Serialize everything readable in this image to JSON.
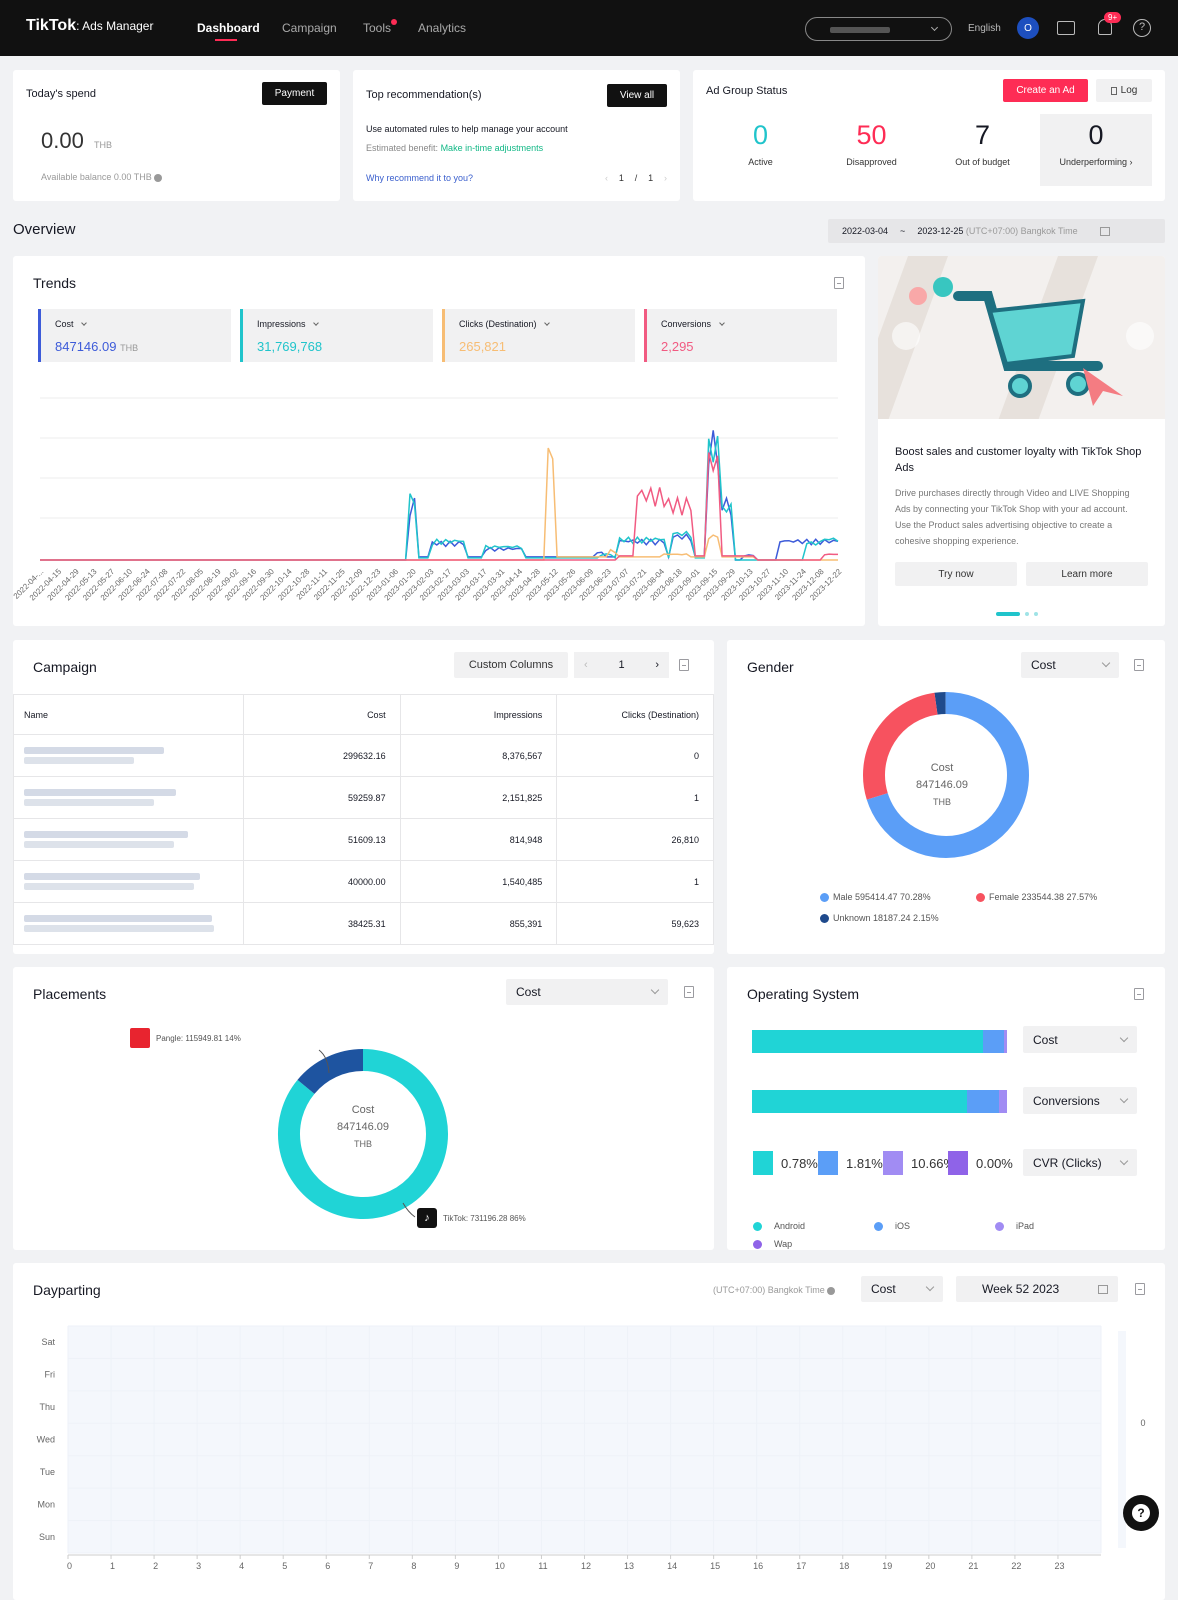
{
  "header": {
    "logo": "TikTok",
    "logo_suffix": ": Ads Manager",
    "nav": [
      "Dashboard",
      "Campaign",
      "Tools",
      "Analytics"
    ],
    "language": "English",
    "avatar": "O",
    "notif_badge": "9+"
  },
  "spend": {
    "title": "Today's spend",
    "payment_label": "Payment",
    "amount": "0.00",
    "currency": "THB",
    "balance": "Available balance 0.00 THB"
  },
  "reco": {
    "title": "Top recommendation(s)",
    "view_all": "View all",
    "text": "Use automated rules to help manage your account",
    "benefit_label": "Estimated benefit:",
    "benefit_link": "Make in-time adjustments",
    "why": "Why recommend it to you?",
    "page": "1",
    "sep": "/",
    "total": "1"
  },
  "adgroup": {
    "title": "Ad Group Status",
    "create": "Create an Ad",
    "log": "Log",
    "stats": [
      {
        "value": "0",
        "label": "Active",
        "color": "#20c4cb"
      },
      {
        "value": "50",
        "label": "Disapproved",
        "color": "#fe2c55"
      },
      {
        "value": "7",
        "label": "Out of budget",
        "color": "#161823"
      },
      {
        "value": "0",
        "label": "Underperforming ›",
        "color": "#161823"
      }
    ]
  },
  "overview": {
    "title": "Overview",
    "date_start": "2022-03-04",
    "date_sep": "~",
    "date_end": "2023-12-25",
    "tz": "(UTC+07:00) Bangkok Time"
  },
  "trends": {
    "title": "Trends",
    "metrics": [
      {
        "label": "Cost",
        "value": "847146.09",
        "unit": "THB",
        "color": "#3d5bd9"
      },
      {
        "label": "Impressions",
        "value": "31,769,768",
        "unit": "",
        "color": "#20c4cb"
      },
      {
        "label": "Clicks (Destination)",
        "value": "265,821",
        "unit": "",
        "color": "#f7bd74"
      },
      {
        "label": "Conversions",
        "value": "2,295",
        "unit": "",
        "color": "#f15b82"
      }
    ],
    "dates": [
      "2022-04-...",
      "2022-04-15",
      "2022-04-29",
      "2022-05-13",
      "2022-05-27",
      "2022-06-10",
      "2022-06-24",
      "2022-07-08",
      "2022-07-22",
      "2022-08-05",
      "2022-08-19",
      "2022-09-02",
      "2022-09-16",
      "2022-09-30",
      "2022-10-14",
      "2022-10-28",
      "2022-11-11",
      "2022-11-25",
      "2022-12-09",
      "2022-12-23",
      "2023-01-06",
      "2023-01-20",
      "2023-02-03",
      "2023-02-17",
      "2023-03-03",
      "2023-03-17",
      "2023-03-31",
      "2023-04-14",
      "2023-04-28",
      "2023-05-12",
      "2023-05-26",
      "2023-06-09",
      "2023-06-23",
      "2023-07-07",
      "2023-07-21",
      "2023-08-04",
      "2023-08-18",
      "2023-09-01",
      "2023-09-15",
      "2023-09-29",
      "2023-10-13",
      "2023-10-27",
      "2023-11-10",
      "2023-11-24",
      "2023-12-08",
      "2023-12-22"
    ]
  },
  "promo": {
    "title": "Boost sales and customer loyalty with TikTok Shop Ads",
    "body": "Drive purchases directly through Video and LIVE Shopping Ads by connecting your TikTok Shop with your ad account. Use the Product sales advertising objective to create a cohesive shopping experience.",
    "try": "Try now",
    "learn": "Learn more"
  },
  "campaign": {
    "title": "Campaign",
    "custom_columns": "Custom Columns",
    "page": "1",
    "columns": [
      "Name",
      "Cost",
      "Impressions",
      "Clicks (Destination)"
    ],
    "rows": [
      {
        "cost": "299632.16",
        "impressions": "8,376,567",
        "clicks": "0"
      },
      {
        "cost": "59259.87",
        "impressions": "2,151,825",
        "clicks": "1"
      },
      {
        "cost": "51609.13",
        "impressions": "814,948",
        "clicks": "26,810"
      },
      {
        "cost": "40000.00",
        "impressions": "1,540,485",
        "clicks": "1"
      },
      {
        "cost": "38425.31",
        "impressions": "855,391",
        "clicks": "59,623"
      }
    ]
  },
  "gender": {
    "title": "Gender",
    "select": "Cost",
    "center_label": "Cost",
    "center_value": "847146.09",
    "center_unit": "THB",
    "legend": [
      {
        "label": "Male 595414.47 70.28%",
        "color": "#5b9ef7",
        "value": 70.28
      },
      {
        "label": "Female 233544.38 27.57%",
        "color": "#f7525f",
        "value": 27.57
      },
      {
        "label": "Unknown 18187.24 2.15%",
        "color": "#1f4a8c",
        "value": 2.15
      }
    ]
  },
  "placements": {
    "title": "Placements",
    "select": "Cost",
    "center_label": "Cost",
    "center_value": "847146.09",
    "center_unit": "THB",
    "pangle": "Pangle: 115949.81 14%",
    "tiktok": "TikTok: 731196.28 86%",
    "slices": [
      {
        "name": "TikTok",
        "value": 86,
        "color": "#20d4d6"
      },
      {
        "name": "Pangle",
        "value": 14,
        "color": "#1e54a0"
      }
    ]
  },
  "os": {
    "title": "Operating System",
    "selects": [
      "Cost",
      "Conversions",
      "CVR (Clicks)"
    ],
    "bars": [
      [
        {
          "v": 90.5,
          "c": "#20d4d6"
        },
        {
          "v": 8.5,
          "c": "#5b9ef7"
        },
        {
          "v": 1.0,
          "c": "#a18cf3"
        }
      ],
      [
        {
          "v": 84.5,
          "c": "#20d4d6"
        },
        {
          "v": 12.5,
          "c": "#5b9ef7"
        },
        {
          "v": 3.0,
          "c": "#a18cf3"
        }
      ]
    ],
    "cvr": [
      {
        "v": "0.78%",
        "c": "#20d4d6"
      },
      {
        "v": "1.81%",
        "c": "#5b9ef7"
      },
      {
        "v": "10.66%",
        "c": "#a18cf3"
      },
      {
        "v": "0.00%",
        "c": "#8f63e8"
      }
    ],
    "legend": [
      {
        "label": "Android",
        "c": "#20d4d6"
      },
      {
        "label": "iOS",
        "c": "#5b9ef7"
      },
      {
        "label": "iPad",
        "c": "#a18cf3"
      },
      {
        "label": "Wap",
        "c": "#8f63e8"
      }
    ]
  },
  "dayparting": {
    "title": "Dayparting",
    "tz": "(UTC+07:00) Bangkok Time",
    "select": "Cost",
    "week": "Week 52 2023",
    "days": [
      "Sat",
      "Fri",
      "Thu",
      "Wed",
      "Tue",
      "Mon",
      "Sun"
    ],
    "hours": [
      "0",
      "1",
      "2",
      "3",
      "4",
      "5",
      "6",
      "7",
      "8",
      "9",
      "10",
      "11",
      "12",
      "13",
      "14",
      "15",
      "16",
      "17",
      "18",
      "19",
      "20",
      "21",
      "22",
      "23"
    ],
    "scale_value": "0"
  }
}
